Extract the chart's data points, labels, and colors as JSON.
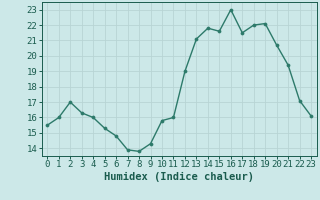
{
  "x": [
    0,
    1,
    2,
    3,
    4,
    5,
    6,
    7,
    8,
    9,
    10,
    11,
    12,
    13,
    14,
    15,
    16,
    17,
    18,
    19,
    20,
    21,
    22,
    23
  ],
  "y": [
    15.5,
    16.0,
    17.0,
    16.3,
    16.0,
    15.3,
    14.8,
    13.9,
    13.8,
    14.3,
    15.8,
    16.0,
    19.0,
    21.1,
    21.8,
    21.6,
    23.0,
    21.5,
    22.0,
    22.1,
    20.7,
    19.4,
    17.1,
    16.1
  ],
  "line_color": "#2d7a6a",
  "marker": "o",
  "marker_size": 2.2,
  "bg_color": "#cce8e8",
  "grid_color": "#b8d4d4",
  "xlabel": "Humidex (Indice chaleur)",
  "ylim": [
    13.5,
    23.5
  ],
  "xlim": [
    -0.5,
    23.5
  ],
  "yticks": [
    14,
    15,
    16,
    17,
    18,
    19,
    20,
    21,
    22,
    23
  ],
  "xticks": [
    0,
    1,
    2,
    3,
    4,
    5,
    6,
    7,
    8,
    9,
    10,
    11,
    12,
    13,
    14,
    15,
    16,
    17,
    18,
    19,
    20,
    21,
    22,
    23
  ],
  "tick_color": "#1a5c4e",
  "label_color": "#1a5c4e",
  "xlabel_fontsize": 7.5,
  "tick_fontsize": 6.5,
  "linewidth": 1.0
}
